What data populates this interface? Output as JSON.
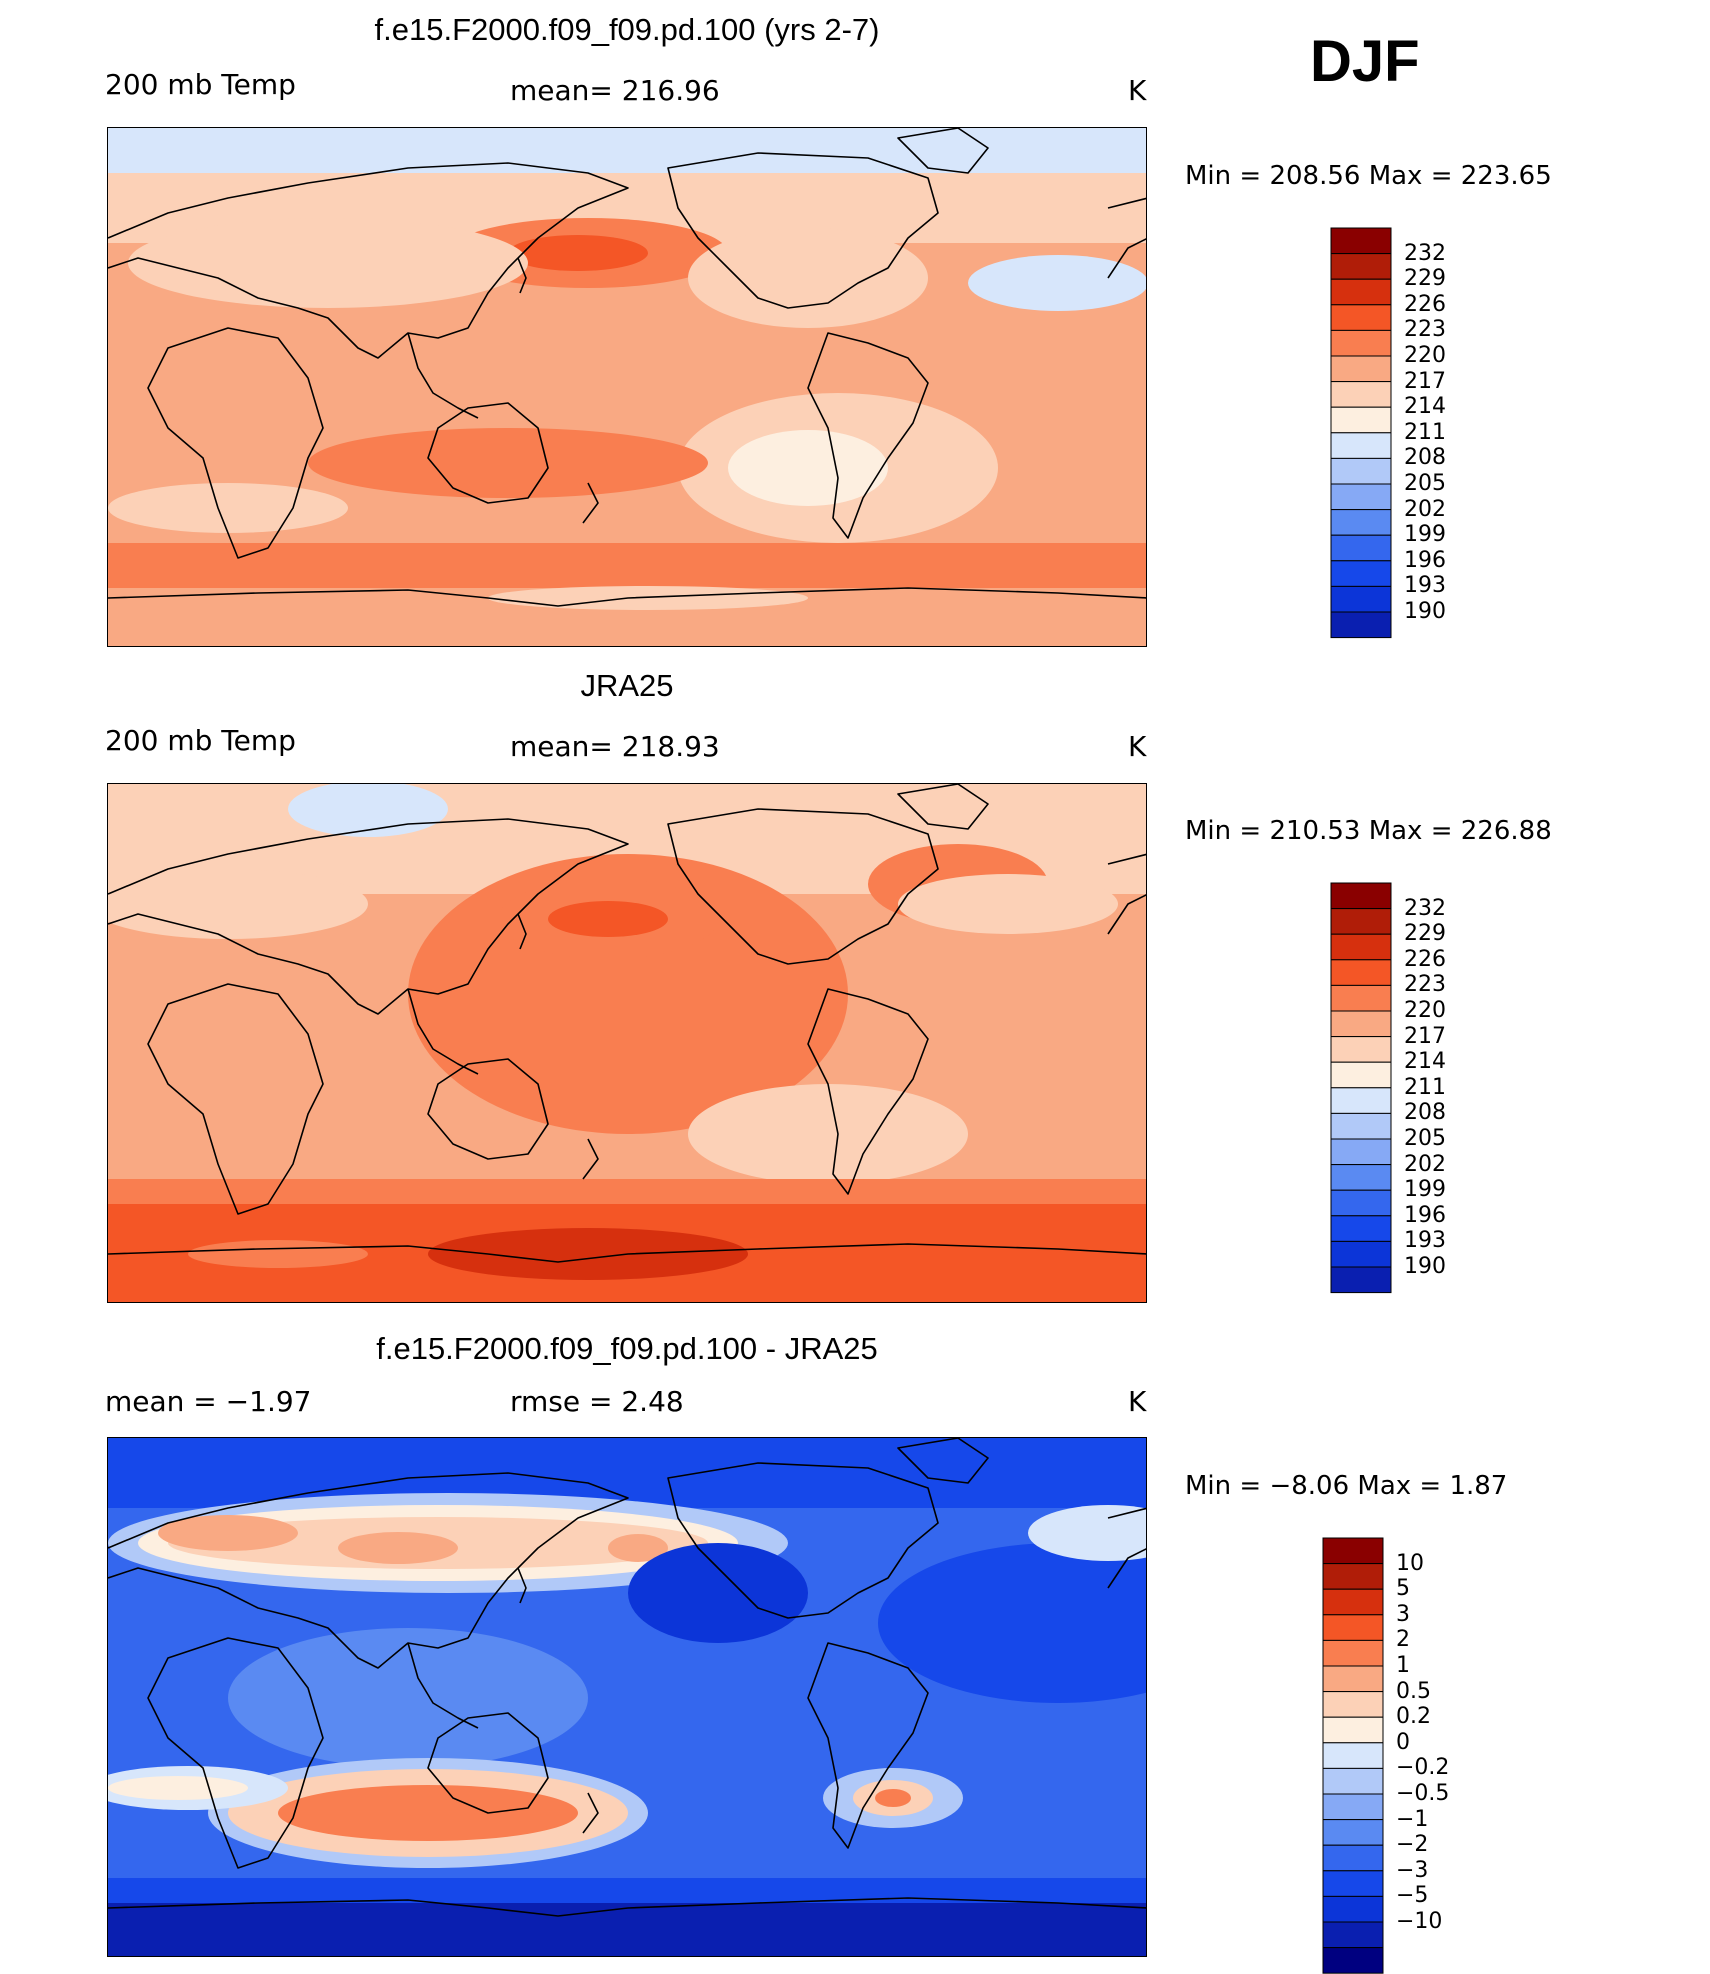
{
  "season": "DJF",
  "colors": {
    "temp_levels": [
      "#000080",
      "#0a1fb0",
      "#0c35d8",
      "#1648ea",
      "#3467ee",
      "#5a8af2",
      "#86a9f5",
      "#b1c9f8",
      "#d7e6fb",
      "#fdefe0",
      "#fcd1b7",
      "#f9a983",
      "#f97e50",
      "#f45626",
      "#d6300e",
      "#b01d08",
      "#8a0000"
    ],
    "diff_levels": [
      "#000080",
      "#0a1fb0",
      "#0c35d8",
      "#1648ea",
      "#3467ee",
      "#5a8af2",
      "#86a9f5",
      "#b1c9f8",
      "#d7e6fb",
      "#fdefe0",
      "#fcd1b7",
      "#f9a983",
      "#f97e50",
      "#f45626",
      "#d6300e",
      "#b01d08",
      "#8a0000"
    ]
  },
  "panels": [
    {
      "title": "f.e15.F2000.f09_f09.pd.100 (yrs 2-7)",
      "left_label": "200 mb Temp",
      "center_label": "mean= 216.96",
      "units": "K",
      "minmax": "Min  =  208.56  Max  =  223.65"
    },
    {
      "title": "JRA25",
      "left_label": "200 mb Temp",
      "center_label": "mean= 218.93",
      "units": "K",
      "minmax": "Min  =  210.53  Max  =  226.88"
    },
    {
      "title": "f.e15.F2000.f09_f09.pd.100 - JRA25",
      "left_label": "mean  =    −1.97",
      "center_label": "rmse  =     2.48",
      "units": "K",
      "minmax": "Min  =    −8.06  Max  =      1.87"
    }
  ],
  "chart_data": [
    {
      "type": "heatmap",
      "title": "f.e15.F2000.f09_f09.pd.100 (yrs 2-7)",
      "field": "200 mb Temp",
      "units": "K",
      "mean": 216.96,
      "min": 208.56,
      "max": 223.65,
      "colorbar_levels": [
        "232",
        "229",
        "226",
        "223",
        "220",
        "217",
        "214",
        "211",
        "208",
        "205",
        "202",
        "199",
        "196",
        "193",
        "190"
      ]
    },
    {
      "type": "heatmap",
      "title": "JRA25",
      "field": "200 mb Temp",
      "units": "K",
      "mean": 218.93,
      "min": 210.53,
      "max": 226.88,
      "colorbar_levels": [
        "232",
        "229",
        "226",
        "223",
        "220",
        "217",
        "214",
        "211",
        "208",
        "205",
        "202",
        "199",
        "196",
        "193",
        "190"
      ]
    },
    {
      "type": "heatmap",
      "title": "f.e15.F2000.f09_f09.pd.100 - JRA25",
      "units": "K",
      "mean": -1.97,
      "rmse": 2.48,
      "min": -8.06,
      "max": 1.87,
      "colorbar_levels": [
        "10",
        "5",
        "3",
        "2",
        "1",
        "0.5",
        "0.2",
        "0",
        "−0.2",
        "−0.5",
        "−1",
        "−2",
        "−3",
        "−5",
        "−10"
      ]
    }
  ]
}
